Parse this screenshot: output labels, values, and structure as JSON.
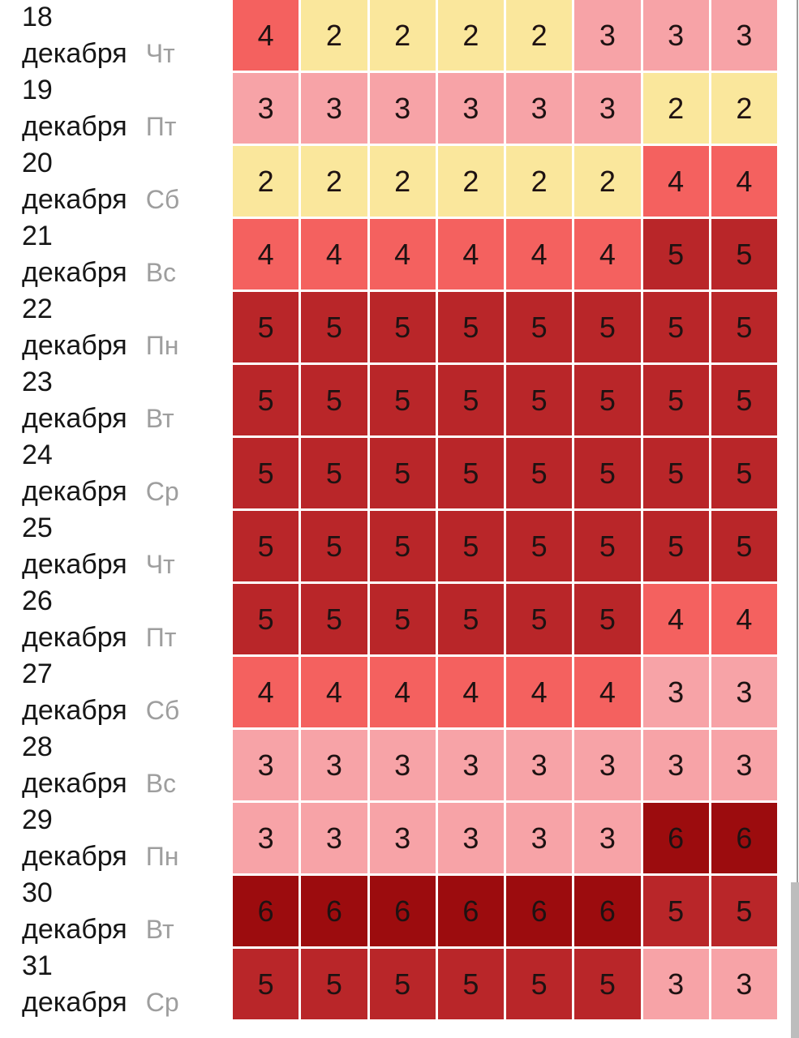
{
  "chart_data": {
    "type": "heatmap",
    "title": "",
    "month_genitive": "декабря",
    "num_columns": 8,
    "value_range": [
      2,
      6
    ],
    "cell_colors_by_value": {
      "2": "#FAE79C",
      "3": "#F7A3A7",
      "4": "#F4615F",
      "5": "#B92629",
      "6": "#9C0C0E"
    },
    "cell_text_color": "#1E1212",
    "date_text_color": "#161616",
    "weekday_text_color": "#9E9E9E",
    "rows": [
      {
        "day": "18",
        "weekday": "Чт",
        "values": [
          4,
          2,
          2,
          2,
          2,
          3,
          3,
          3
        ]
      },
      {
        "day": "19",
        "weekday": "Пт",
        "values": [
          3,
          3,
          3,
          3,
          3,
          3,
          2,
          2
        ]
      },
      {
        "day": "20",
        "weekday": "Сб",
        "values": [
          2,
          2,
          2,
          2,
          2,
          2,
          4,
          4
        ]
      },
      {
        "day": "21",
        "weekday": "Вс",
        "values": [
          4,
          4,
          4,
          4,
          4,
          4,
          5,
          5
        ]
      },
      {
        "day": "22",
        "weekday": "Пн",
        "values": [
          5,
          5,
          5,
          5,
          5,
          5,
          5,
          5
        ]
      },
      {
        "day": "23",
        "weekday": "Вт",
        "values": [
          5,
          5,
          5,
          5,
          5,
          5,
          5,
          5
        ]
      },
      {
        "day": "24",
        "weekday": "Ср",
        "values": [
          5,
          5,
          5,
          5,
          5,
          5,
          5,
          5
        ]
      },
      {
        "day": "25",
        "weekday": "Чт",
        "values": [
          5,
          5,
          5,
          5,
          5,
          5,
          5,
          5
        ]
      },
      {
        "day": "26",
        "weekday": "Пт",
        "values": [
          5,
          5,
          5,
          5,
          5,
          5,
          4,
          4
        ]
      },
      {
        "day": "27",
        "weekday": "Сб",
        "values": [
          4,
          4,
          4,
          4,
          4,
          4,
          3,
          3
        ]
      },
      {
        "day": "28",
        "weekday": "Вс",
        "values": [
          3,
          3,
          3,
          3,
          3,
          3,
          3,
          3
        ]
      },
      {
        "day": "29",
        "weekday": "Пн",
        "values": [
          3,
          3,
          3,
          3,
          3,
          3,
          6,
          6
        ]
      },
      {
        "day": "30",
        "weekday": "Вт",
        "values": [
          6,
          6,
          6,
          6,
          6,
          6,
          5,
          5
        ]
      },
      {
        "day": "31",
        "weekday": "Ср",
        "values": [
          5,
          5,
          5,
          5,
          5,
          5,
          3,
          3
        ]
      }
    ],
    "layout_hints": {
      "grid_gap_color": "#FFFFFF",
      "legend": "none",
      "axis": "dates on left, 8 unlabeled interval columns"
    }
  },
  "scrollbar": {
    "thumb_color": "#BDBDBD",
    "track_line_color": "#9B9B9B"
  }
}
